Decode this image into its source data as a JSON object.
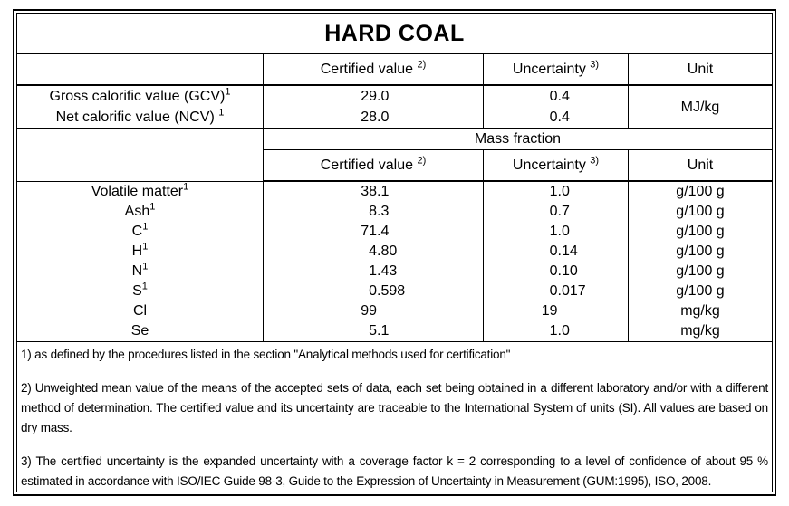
{
  "title": "HARD COAL",
  "colors": {
    "border": "#000000",
    "text": "#000000",
    "background": "#ffffff"
  },
  "headers": {
    "certified_label": "Certified value",
    "certified_sup": "2)",
    "uncertainty_label": "Uncertainty",
    "uncertainty_sup": "3)",
    "unit_label": "Unit"
  },
  "calorific": {
    "rows": [
      {
        "label": "Gross calorific value (GCV)",
        "sup": "1",
        "certified": "29.0",
        "uncertainty": "0.4"
      },
      {
        "label": "Net calorific value (NCV)",
        "sup": "1",
        "certified": "28.0",
        "uncertainty": "0.4"
      }
    ],
    "unit": "MJ/kg"
  },
  "mass_fraction_label": "Mass fraction",
  "mass_fraction": {
    "rows": [
      {
        "label": "Volatile matter",
        "sup": "1",
        "certified": "38.1",
        "uncertainty": "1.0",
        "unit": "g/100 g"
      },
      {
        "label": "Ash",
        "sup": "1",
        "certified": "8.3",
        "uncertainty": "0.7",
        "unit": "g/100 g"
      },
      {
        "label": "C",
        "sup": "1",
        "certified": "71.4",
        "uncertainty": "1.0",
        "unit": "g/100 g"
      },
      {
        "label": "H",
        "sup": "1",
        "certified": "4.80",
        "uncertainty": "0.14",
        "unit": "g/100 g"
      },
      {
        "label": "N",
        "sup": "1",
        "certified": "1.43",
        "uncertainty": "0.10",
        "unit": "g/100 g"
      },
      {
        "label": "S",
        "sup": "1",
        "certified": "0.598",
        "uncertainty": "0.017",
        "unit": "g/100 g"
      },
      {
        "label": "Cl",
        "sup": "",
        "certified": "99",
        "uncertainty": "19",
        "unit": "mg/kg"
      },
      {
        "label": "Se",
        "sup": "",
        "certified": "5.1",
        "uncertainty": "1.0",
        "unit": "mg/kg"
      }
    ]
  },
  "footnotes": [
    "1) as defined by the procedures listed in the section \"Analytical methods used for certification\"",
    "2) Unweighted mean value of the means of the accepted sets of data, each set being obtained in a different laboratory and/or with a different method of determination. The certified value and its uncertainty are traceable to the International System of units (SI). All values are based on dry mass.",
    "3) The certified uncertainty is the expanded uncertainty with a coverage factor k = 2 corresponding to a level of confidence of about 95 % estimated in accordance with ISO/IEC Guide 98-3, Guide to the Expression of Uncertainty in Measurement (GUM:1995), ISO, 2008."
  ]
}
